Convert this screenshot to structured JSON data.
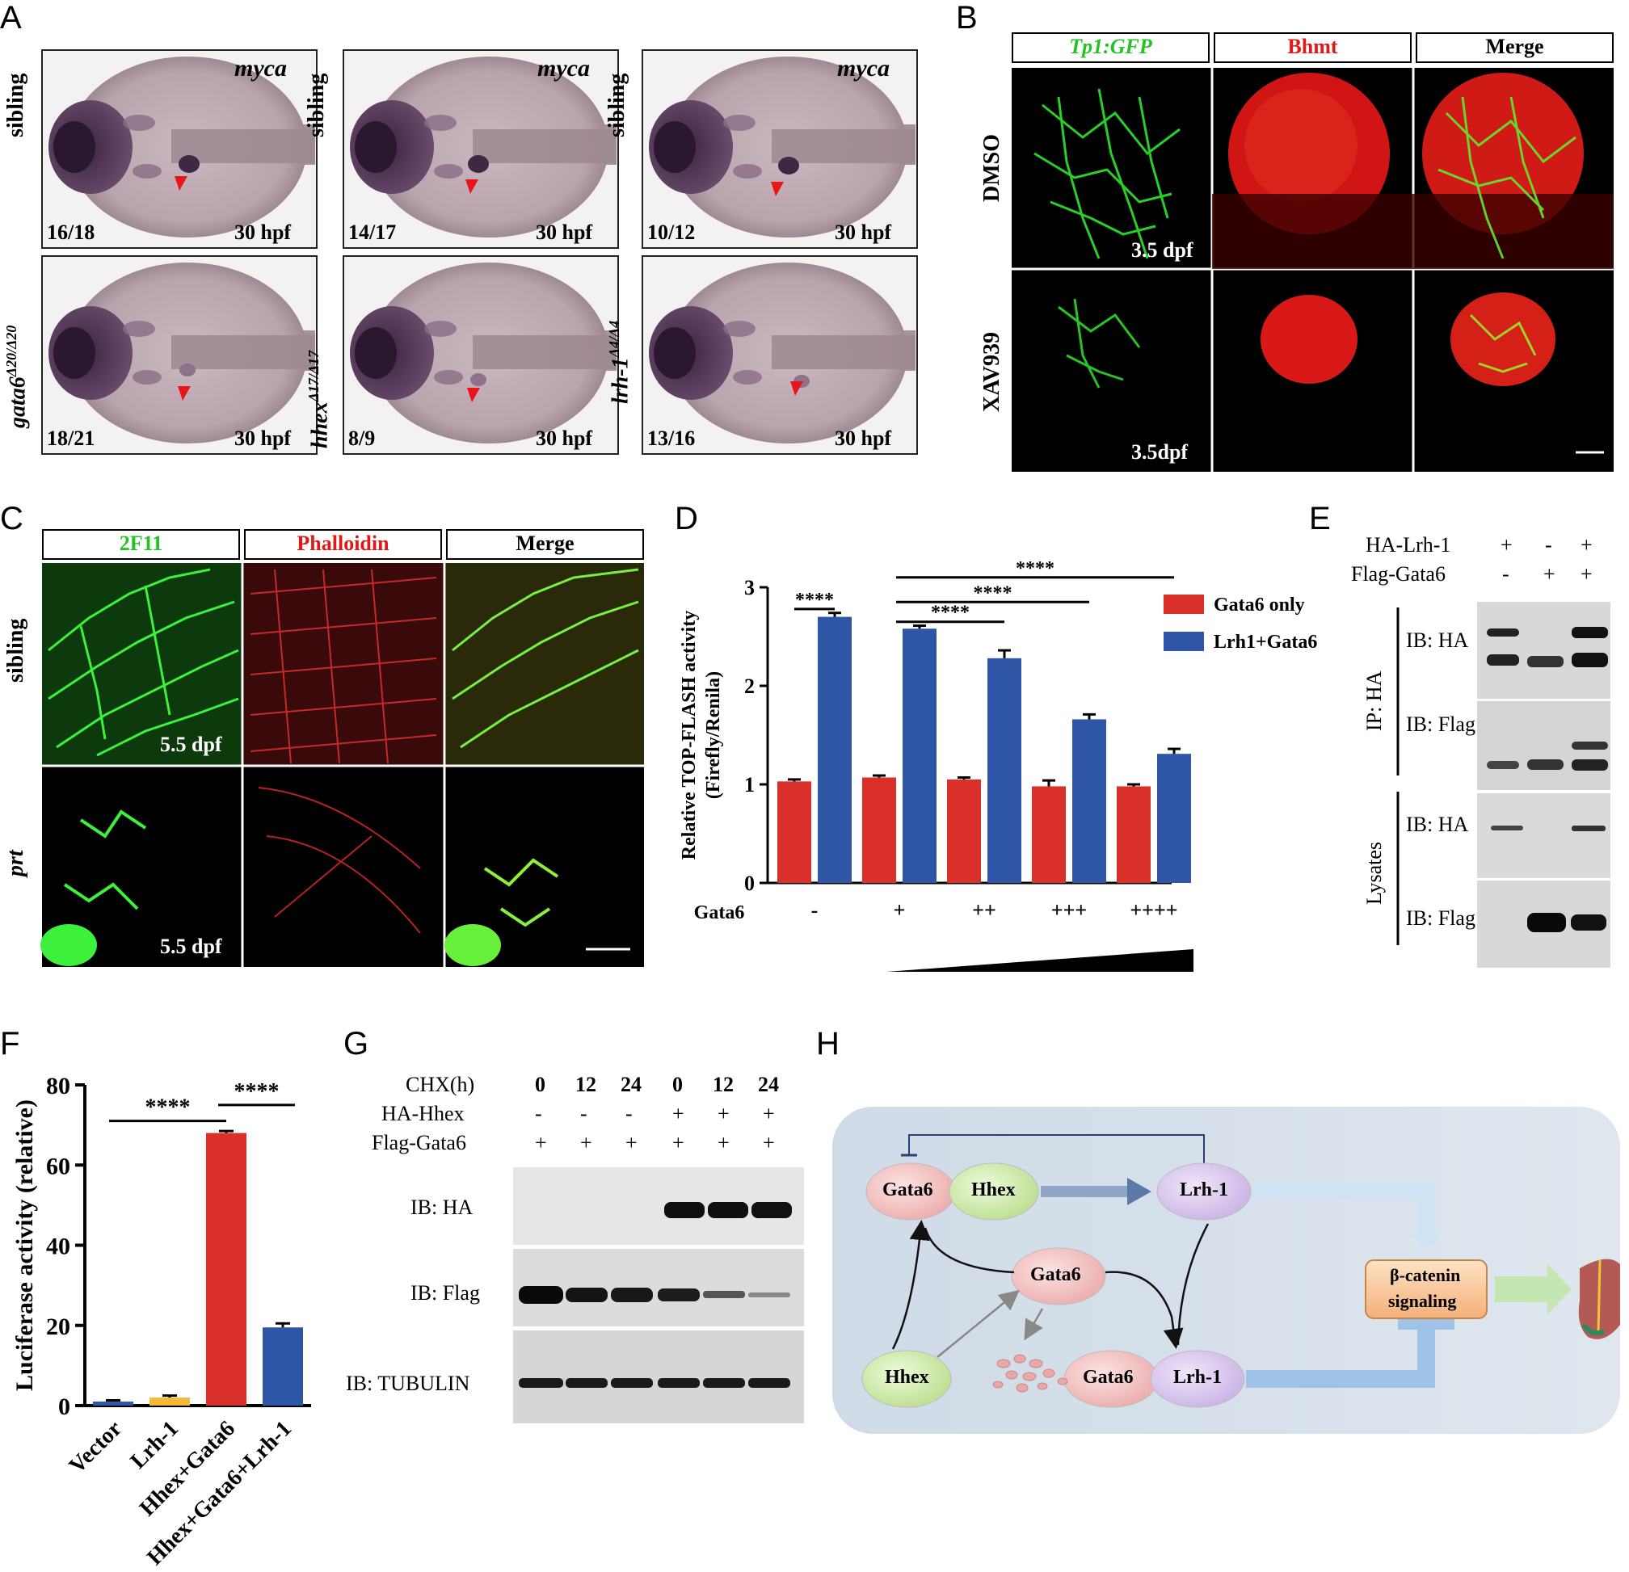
{
  "panel_labels": {
    "A": "A",
    "B": "B",
    "C": "C",
    "D": "D",
    "E": "E",
    "F": "F",
    "G": "G",
    "H": "H"
  },
  "panel_a": {
    "gene": "myca",
    "stage": "30 hpf",
    "rows": [
      "sibling",
      "gata6",
      "hhex",
      "lrh-1"
    ],
    "top_row_label": "sibling",
    "mutants": [
      {
        "gene": "gata6",
        "allele": "Δ20/Δ20"
      },
      {
        "gene": "hhex",
        "allele": "Δ17/Δ17"
      },
      {
        "gene": "lrh-1",
        "allele": "Δ4/Δ4"
      }
    ],
    "counts_top": [
      "16/18",
      "14/17",
      "10/12"
    ],
    "counts_bottom": [
      "18/21",
      "8/9",
      "13/16"
    ]
  },
  "panel_b": {
    "headers": [
      "Tp1:GFP",
      "Bhmt",
      "Merge"
    ],
    "rows": [
      "DMSO",
      "XAV939"
    ],
    "stages": [
      "3.5 dpf",
      "3.5dpf"
    ]
  },
  "panel_c": {
    "headers": [
      "2F11",
      "Phalloidin",
      "Merge"
    ],
    "rows": [
      "sibling",
      "prt"
    ],
    "stages": [
      "5.5 dpf",
      "5.5 dpf"
    ]
  },
  "panel_e": {
    "conditions": [
      {
        "label": "HA-Lrh-1",
        "values": [
          "+",
          "-",
          "+"
        ]
      },
      {
        "label": "Flag-Gata6",
        "values": [
          "-",
          "+",
          "+"
        ]
      }
    ],
    "group_labels": [
      "IP: HA",
      "Lysates"
    ],
    "blots": [
      "IB: HA",
      "IB: Flag",
      "IB: HA",
      "IB: Flag"
    ]
  },
  "panel_g": {
    "conditions": [
      {
        "label": "CHX(h)",
        "values": [
          "0",
          "12",
          "24",
          "0",
          "12",
          "24"
        ]
      },
      {
        "label": "HA-Hhex",
        "values": [
          "-",
          "-",
          "-",
          "+",
          "+",
          "+"
        ]
      },
      {
        "label": "Flag-Gata6",
        "values": [
          "+",
          "+",
          "+",
          "+",
          "+",
          "+"
        ]
      }
    ],
    "blots": [
      "IB: HA",
      "IB: Flag",
      "IB: TUBULIN"
    ]
  },
  "panel_h": {
    "nodes": {
      "gata6_a": "Gata6",
      "hhex_a": "Hhex",
      "lrh1_a": "Lrh-1",
      "gata6_free": "Gata6",
      "hhex_free": "Hhex",
      "gata6_b": "Gata6",
      "lrh1_b": "Lrh-1",
      "signal_line1": "β-catenin",
      "signal_line2": "signaling"
    }
  },
  "chart_data": [
    {
      "panel": "D",
      "type": "bar",
      "ylabel": "Relative TOP-FLASH activity",
      "ylabel2": "(Firefly/Renila)",
      "xlabel": "Gata6",
      "categories": [
        "-",
        "+",
        "++",
        "+++",
        "++++"
      ],
      "ylim": [
        0,
        3
      ],
      "yticks": [
        "0",
        "1",
        "2",
        "3"
      ],
      "series": [
        {
          "name": "Gata6 only",
          "color": "#d9302a",
          "values": [
            1.03,
            1.07,
            1.05,
            0.98,
            0.98
          ],
          "errors": [
            0.02,
            0.02,
            0.02,
            0.06,
            0.02
          ]
        },
        {
          "name": "Lrh1+Gata6",
          "color": "#2f56a6",
          "values": [
            2.7,
            2.58,
            2.28,
            1.66,
            1.31
          ],
          "errors": [
            0.04,
            0.03,
            0.08,
            0.05,
            0.05
          ]
        }
      ],
      "significance": [
        "****",
        "****",
        "****",
        "****"
      ]
    },
    {
      "panel": "F",
      "type": "bar",
      "ylabel": "Luciferase activity (relative)",
      "categories": [
        "Vector",
        "Lrh-1",
        "Hhex+Gata6",
        "Hhex+Gata6+Lrh-1"
      ],
      "values": [
        1.0,
        2.0,
        68.0,
        19.5
      ],
      "errors": [
        0.3,
        0.5,
        0.5,
        1.0
      ],
      "colors": [
        "#2f56a6",
        "#f5b93a",
        "#d9302a",
        "#2f56a6"
      ],
      "ylim": [
        0,
        80
      ],
      "yticks": [
        "0",
        "20",
        "40",
        "60",
        "80"
      ],
      "significance": [
        "****",
        "****"
      ]
    }
  ]
}
